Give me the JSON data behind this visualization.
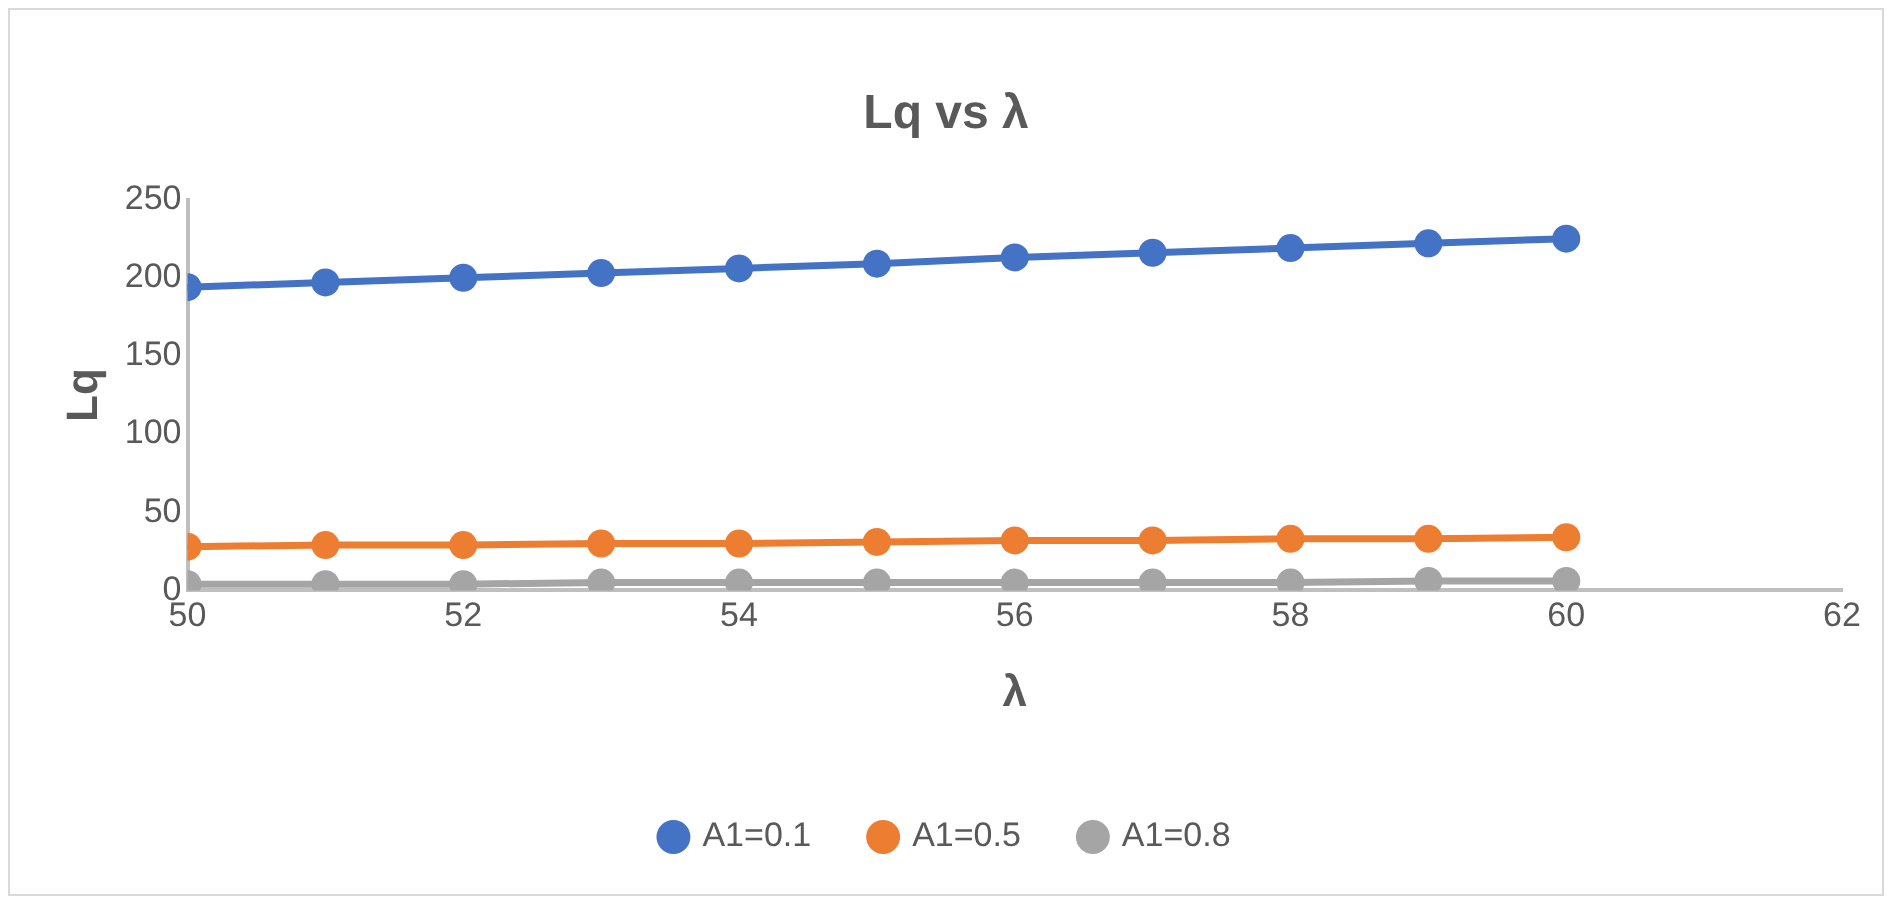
{
  "chart_data": {
    "type": "line",
    "title": "Lq vs λ",
    "xlabel": "λ",
    "ylabel": "Lq",
    "x": [
      50,
      51,
      52,
      53,
      54,
      55,
      56,
      57,
      58,
      59,
      60
    ],
    "series": [
      {
        "name": "A1=0.1",
        "color": "#4472c4",
        "values": [
          194,
          197,
          200,
          203,
          206,
          209,
          213,
          216,
          219,
          222,
          225
        ]
      },
      {
        "name": "A1=0.5",
        "color": "#ed7d31",
        "values": [
          28,
          29,
          29,
          30,
          30,
          31,
          32,
          32,
          33,
          33,
          34
        ]
      },
      {
        "name": "A1=0.8",
        "color": "#a5a5a5",
        "values": [
          4,
          4,
          4,
          5,
          5,
          5,
          5,
          5,
          5,
          6,
          6
        ]
      }
    ],
    "xlim": [
      50,
      62
    ],
    "xticks": [
      50,
      52,
      54,
      56,
      58,
      60,
      62
    ],
    "ylim": [
      0,
      250
    ],
    "yticks": [
      0,
      50,
      100,
      150,
      200,
      250
    ],
    "grid": false,
    "legend": "bottom",
    "marker": "circle",
    "line_style": "solid"
  }
}
